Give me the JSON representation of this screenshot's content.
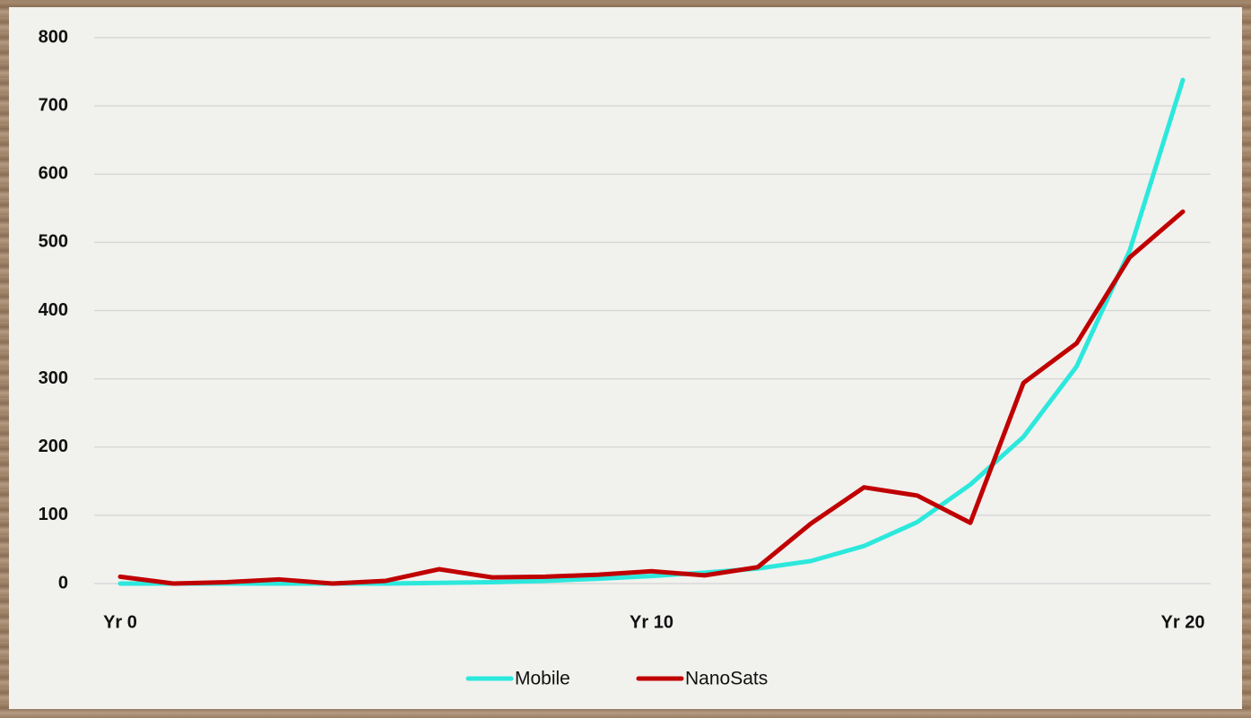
{
  "chart_data": {
    "type": "line",
    "categories": [
      "Yr 0",
      null,
      null,
      null,
      null,
      null,
      null,
      null,
      null,
      null,
      "Yr 10",
      null,
      null,
      null,
      null,
      null,
      null,
      null,
      null,
      null,
      "Yr 20"
    ],
    "series": [
      {
        "name": "Mobile",
        "color": "#2ce8dc",
        "values": [
          0,
          0,
          0,
          0,
          0,
          0,
          1,
          2,
          4,
          7,
          11,
          16,
          22,
          33,
          55,
          90,
          145,
          215,
          318,
          488,
          738
        ]
      },
      {
        "name": "NanoSats",
        "color": "#c00000",
        "values": [
          10,
          0,
          2,
          6,
          0,
          4,
          21,
          9,
          10,
          13,
          18,
          12,
          24,
          88,
          141,
          129,
          89,
          294,
          352,
          478,
          545
        ]
      }
    ],
    "ylim": [
      0,
      800
    ],
    "yticks": [
      0,
      100,
      200,
      300,
      400,
      500,
      600,
      700,
      800
    ],
    "grid": true,
    "legend": "bottom"
  }
}
